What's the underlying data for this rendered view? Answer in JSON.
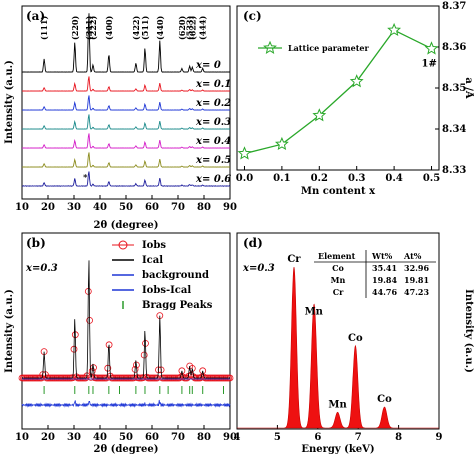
{
  "chart_data": [
    {
      "panel": "(a)",
      "type": "line",
      "xlabel": "2θ (degree)",
      "ylabel": "Intensity (a.u.)",
      "xlim": [
        10,
        90
      ],
      "xticks": [
        "10",
        "20",
        "30",
        "40",
        "50",
        "60",
        "70",
        "80",
        "90"
      ],
      "peak_labels": [
        {
          "text": "(111)",
          "x": 18.5
        },
        {
          "text": "(220)",
          "x": 30.3
        },
        {
          "text": "(311)",
          "x": 35.7
        },
        {
          "text": "(222)",
          "x": 37.3
        },
        {
          "text": "(400)",
          "x": 43.4
        },
        {
          "text": "(422)",
          "x": 53.8
        },
        {
          "text": "(511)",
          "x": 57.3
        },
        {
          "text": "(440)",
          "x": 63.0
        },
        {
          "text": "(620)",
          "x": 71.5
        },
        {
          "text": "(533)",
          "x": 74.5
        },
        {
          "text": "(622)",
          "x": 75.5
        },
        {
          "text": "(444)",
          "x": 79.5
        }
      ],
      "peaks": [
        {
          "x": 18.5,
          "h": 0.22
        },
        {
          "x": 30.3,
          "h": 0.5
        },
        {
          "x": 35.7,
          "h": 1.0
        },
        {
          "x": 37.3,
          "h": 0.12
        },
        {
          "x": 43.4,
          "h": 0.3
        },
        {
          "x": 53.8,
          "h": 0.15
        },
        {
          "x": 57.3,
          "h": 0.4
        },
        {
          "x": 63.0,
          "h": 0.52
        },
        {
          "x": 71.5,
          "h": 0.06
        },
        {
          "x": 74.5,
          "h": 0.1
        },
        {
          "x": 75.5,
          "h": 0.08
        },
        {
          "x": 79.5,
          "h": 0.06
        }
      ],
      "series": [
        {
          "name": "x = 0",
          "color": "#000000"
        },
        {
          "name": "x = 0.1",
          "color": "#e8141e"
        },
        {
          "name": "x = 0.2",
          "color": "#1e36d6"
        },
        {
          "name": "x = 0.3",
          "color": "#1a8a8a"
        },
        {
          "name": "x = 0.4",
          "color": "#d41cc8"
        },
        {
          "name": "x = 0.5",
          "color": "#8c8c1e"
        },
        {
          "name": "x = 0.6",
          "color": "#1c1c9c"
        }
      ],
      "series_labels": [
        "x= 0",
        "x= 0.1",
        "x= 0.2",
        "x= 0.3",
        "x= 0.4",
        "x= 0.5",
        "x= 0.6"
      ],
      "annotation": "*"
    },
    {
      "panel": "(b)",
      "type": "line",
      "xlabel": "2θ (degree)",
      "ylabel": "Intensity (a.u.)",
      "xlim": [
        10,
        90
      ],
      "xticks": [
        "10",
        "20",
        "30",
        "40",
        "50",
        "60",
        "70",
        "80",
        "90"
      ],
      "sample_label": "x=0.3",
      "legend": [
        "Iobs",
        "Ical",
        "background",
        "Iobs-Ical",
        "Bragg Peaks"
      ],
      "legend_colors": [
        "#e8141e",
        "#000000",
        "#1e36d6",
        "#1e36d6",
        "#2a9a2a"
      ],
      "bragg_positions": [
        18.5,
        30.3,
        35.7,
        37.3,
        43.4,
        47.5,
        53.8,
        57.3,
        63.0,
        66.2,
        71.5,
        74.5,
        75.5,
        79.5,
        87.5
      ]
    },
    {
      "panel": "(c)",
      "type": "line",
      "xlabel": "Mn content x",
      "ylabel": "a (Å)",
      "ylabel_display": "a /Å",
      "xlim": [
        -0.02,
        0.52
      ],
      "ylim": [
        8.33,
        8.37
      ],
      "xticks": [
        "0.0",
        "0.1",
        "0.2",
        "0.3",
        "0.4",
        "0.5"
      ],
      "yticks": [
        "8.33",
        "8.34",
        "8.35",
        "8.36",
        "8.37"
      ],
      "series": [
        {
          "name": "Lattice parameter",
          "color": "#2aa82a",
          "x": [
            0.0,
            0.1,
            0.2,
            0.3,
            0.4,
            0.5
          ],
          "y": [
            8.334,
            8.3363,
            8.3433,
            8.3516,
            8.3641,
            8.3596
          ]
        }
      ],
      "annotation": "1#"
    },
    {
      "panel": "(d)",
      "type": "area",
      "xlabel": "Energy (keV)",
      "ylabel": "Intensity (a.u.)",
      "xlim": [
        4,
        9
      ],
      "xticks": [
        "4",
        "5",
        "6",
        "7",
        "8",
        "9"
      ],
      "sample_label": "x=0.3",
      "peaks": [
        {
          "label": "Cr",
          "x": 5.41,
          "h": 0.92
        },
        {
          "label": "Mn",
          "x": 5.9,
          "h": 0.62
        },
        {
          "label": "Mn",
          "x": 6.49,
          "h": 0.09
        },
        {
          "label": "Co",
          "x": 6.93,
          "h": 0.47
        },
        {
          "label": "Co",
          "x": 7.65,
          "h": 0.12
        }
      ],
      "secondary_peaks": [
        {
          "x": 5.95,
          "h": 0.12
        }
      ],
      "table": {
        "header": [
          "Element",
          "Wt%",
          "At%"
        ],
        "rows": [
          [
            "Co",
            "35.41",
            "32.96"
          ],
          [
            "Mn",
            "19.84",
            "19.81"
          ],
          [
            "Cr",
            "44.76",
            "47.23"
          ]
        ]
      }
    }
  ]
}
